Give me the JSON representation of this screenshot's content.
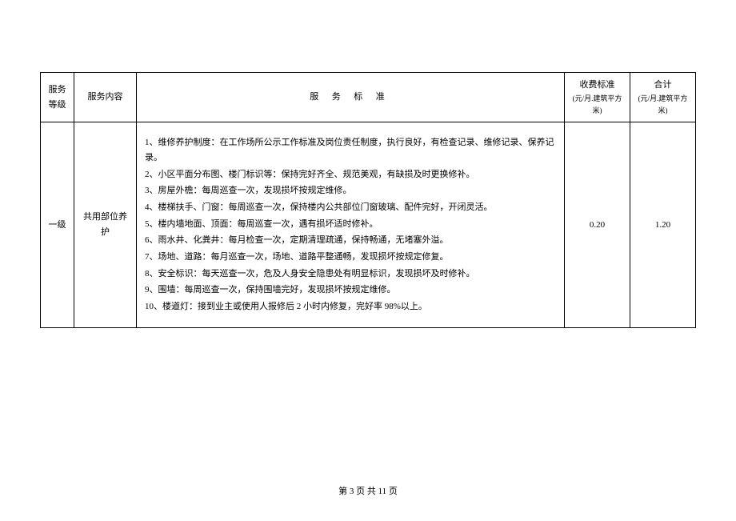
{
  "table": {
    "headers": {
      "level": "服务\n等级",
      "content": "服务内容",
      "standard": "服务标准",
      "fee_main": "收费标准",
      "fee_sub": "(元/月.建筑平方米)",
      "total_main": "合计",
      "total_sub": "(元/月.建筑平方米)"
    },
    "row": {
      "level": "一级",
      "content": "共用部位养护",
      "standards": [
        "1、维修养护制度：在工作场所公示工作标准及岗位责任制度，执行良好，有检查记录、维修记录、保养记录。",
        "2、小区平面分布图、楼门标识等：保持完好齐全、规范美观，有缺损及时更换修补。",
        "3、房屋外檐：每周巡查一次，发现损坏按规定维修。",
        "4、楼梯扶手、门窗：每周巡查一次，保持楼内公共部位门窗玻璃、配件完好，开闭灵活。",
        "5、楼内墙地面、顶面：每周巡查一次，遇有损坏适时修补。",
        "6、雨水井、化粪井：每月检查一次，定期清理疏通，保持畅通，无堵塞外溢。",
        "7、场地、道路：每月巡查一次，场地、道路平整通畅，发现损坏按规定修复。",
        "8、安全标识：每天巡查一次，危及人身安全隐患处有明显标识，发现损坏及时修补。",
        "9、围墙：每周巡查一次，保持围墙完好，发现损坏按规定维修。",
        "10、楼道灯：接到业主或使用人报修后 2 小时内修复，完好率 98%以上。"
      ],
      "fee": "0.20",
      "total": "1.20"
    }
  },
  "footer": "第 3 页 共 11 页"
}
